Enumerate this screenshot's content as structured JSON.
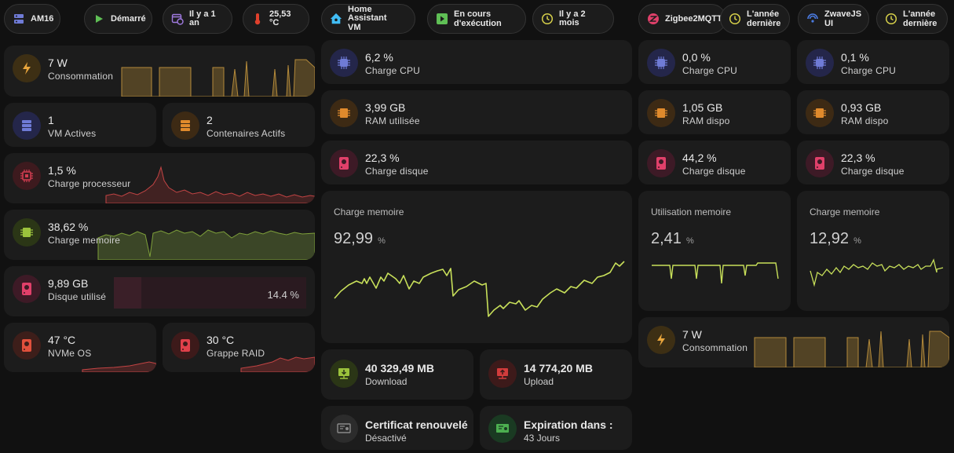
{
  "chips": {
    "am16": "AM16",
    "started": "Démarré",
    "uptime": "Il y a 1 an",
    "temp": "25,53 °C",
    "ha_vm_1": "Home Assistant",
    "ha_vm_2": "VM",
    "running_1": "En cours",
    "running_2": "d'exécution",
    "ha_age": "Il y a 2 mois",
    "zigbee": "Zigbee2MQTT",
    "zigbee_age_1": "L'année",
    "zigbee_age_2": "dernière",
    "zwave_1": "ZwaveJS",
    "zwave_2": "UI",
    "zwave_age_1": "L'année",
    "zwave_age_2": "dernière"
  },
  "host": {
    "power": {
      "value": "7 W",
      "label": "Consommation"
    },
    "vms": {
      "value": "1",
      "label": "VM Actives"
    },
    "containers": {
      "value": "2",
      "label": "Contenaires Actifs"
    },
    "cpu": {
      "value": "1,5 %",
      "label": "Charge processeur"
    },
    "memory": {
      "value": "38,62 %",
      "label": "Charge memoire"
    },
    "disk": {
      "value": "9,89 GB",
      "label": "Disque utilisé",
      "percent": "14.4 %",
      "fill": 0.144
    },
    "nvme": {
      "value": "47 °C",
      "label": "NVMe OS"
    },
    "raid": {
      "value": "30 °C",
      "label": "Grappe RAID"
    }
  },
  "ha": {
    "cpu": {
      "value": "6,2 %",
      "label": "Charge CPU"
    },
    "ram": {
      "value": "3,99 GB",
      "label": "RAM utilisée"
    },
    "disk": {
      "value": "22,3 %",
      "label": "Charge disque"
    },
    "mem_graph": {
      "title": "Charge memoire",
      "value": "92,99",
      "unit": "%"
    },
    "download": {
      "value": "40 329,49 MB",
      "label": "Download"
    },
    "upload": {
      "value": "14 774,20 MB",
      "label": "Upload"
    },
    "cert": {
      "value": "Certificat renouvelé",
      "label": "Désactivé"
    },
    "expiry": {
      "value": "Expiration dans :",
      "label": "43 Jours"
    }
  },
  "zigbee": {
    "cpu": {
      "value": "0,0 %",
      "label": "Charge CPU"
    },
    "ram": {
      "value": "1,05 GB",
      "label": "RAM dispo"
    },
    "disk": {
      "value": "44,2 %",
      "label": "Charge disque"
    },
    "mem_graph": {
      "title": "Utilisation memoire",
      "value": "2,41",
      "unit": "%"
    }
  },
  "zwave": {
    "cpu": {
      "value": "0,1 %",
      "label": "Charge CPU"
    },
    "ram": {
      "value": "0,93 GB",
      "label": "RAM dispo"
    },
    "disk": {
      "value": "22,3 %",
      "label": "Charge disque"
    },
    "mem_graph": {
      "title": "Charge memoire",
      "value": "12,92",
      "unit": "%"
    }
  },
  "power2": {
    "value": "7 W",
    "label": "Consommation"
  },
  "colors": {
    "purple": "#5a5ad6",
    "orange": "#e08a2c",
    "pink": "#e0406a",
    "red": "#d23c3c",
    "green": "#9bc23c",
    "yellow": "#e0b040",
    "graph_line": "#c8e05a"
  }
}
